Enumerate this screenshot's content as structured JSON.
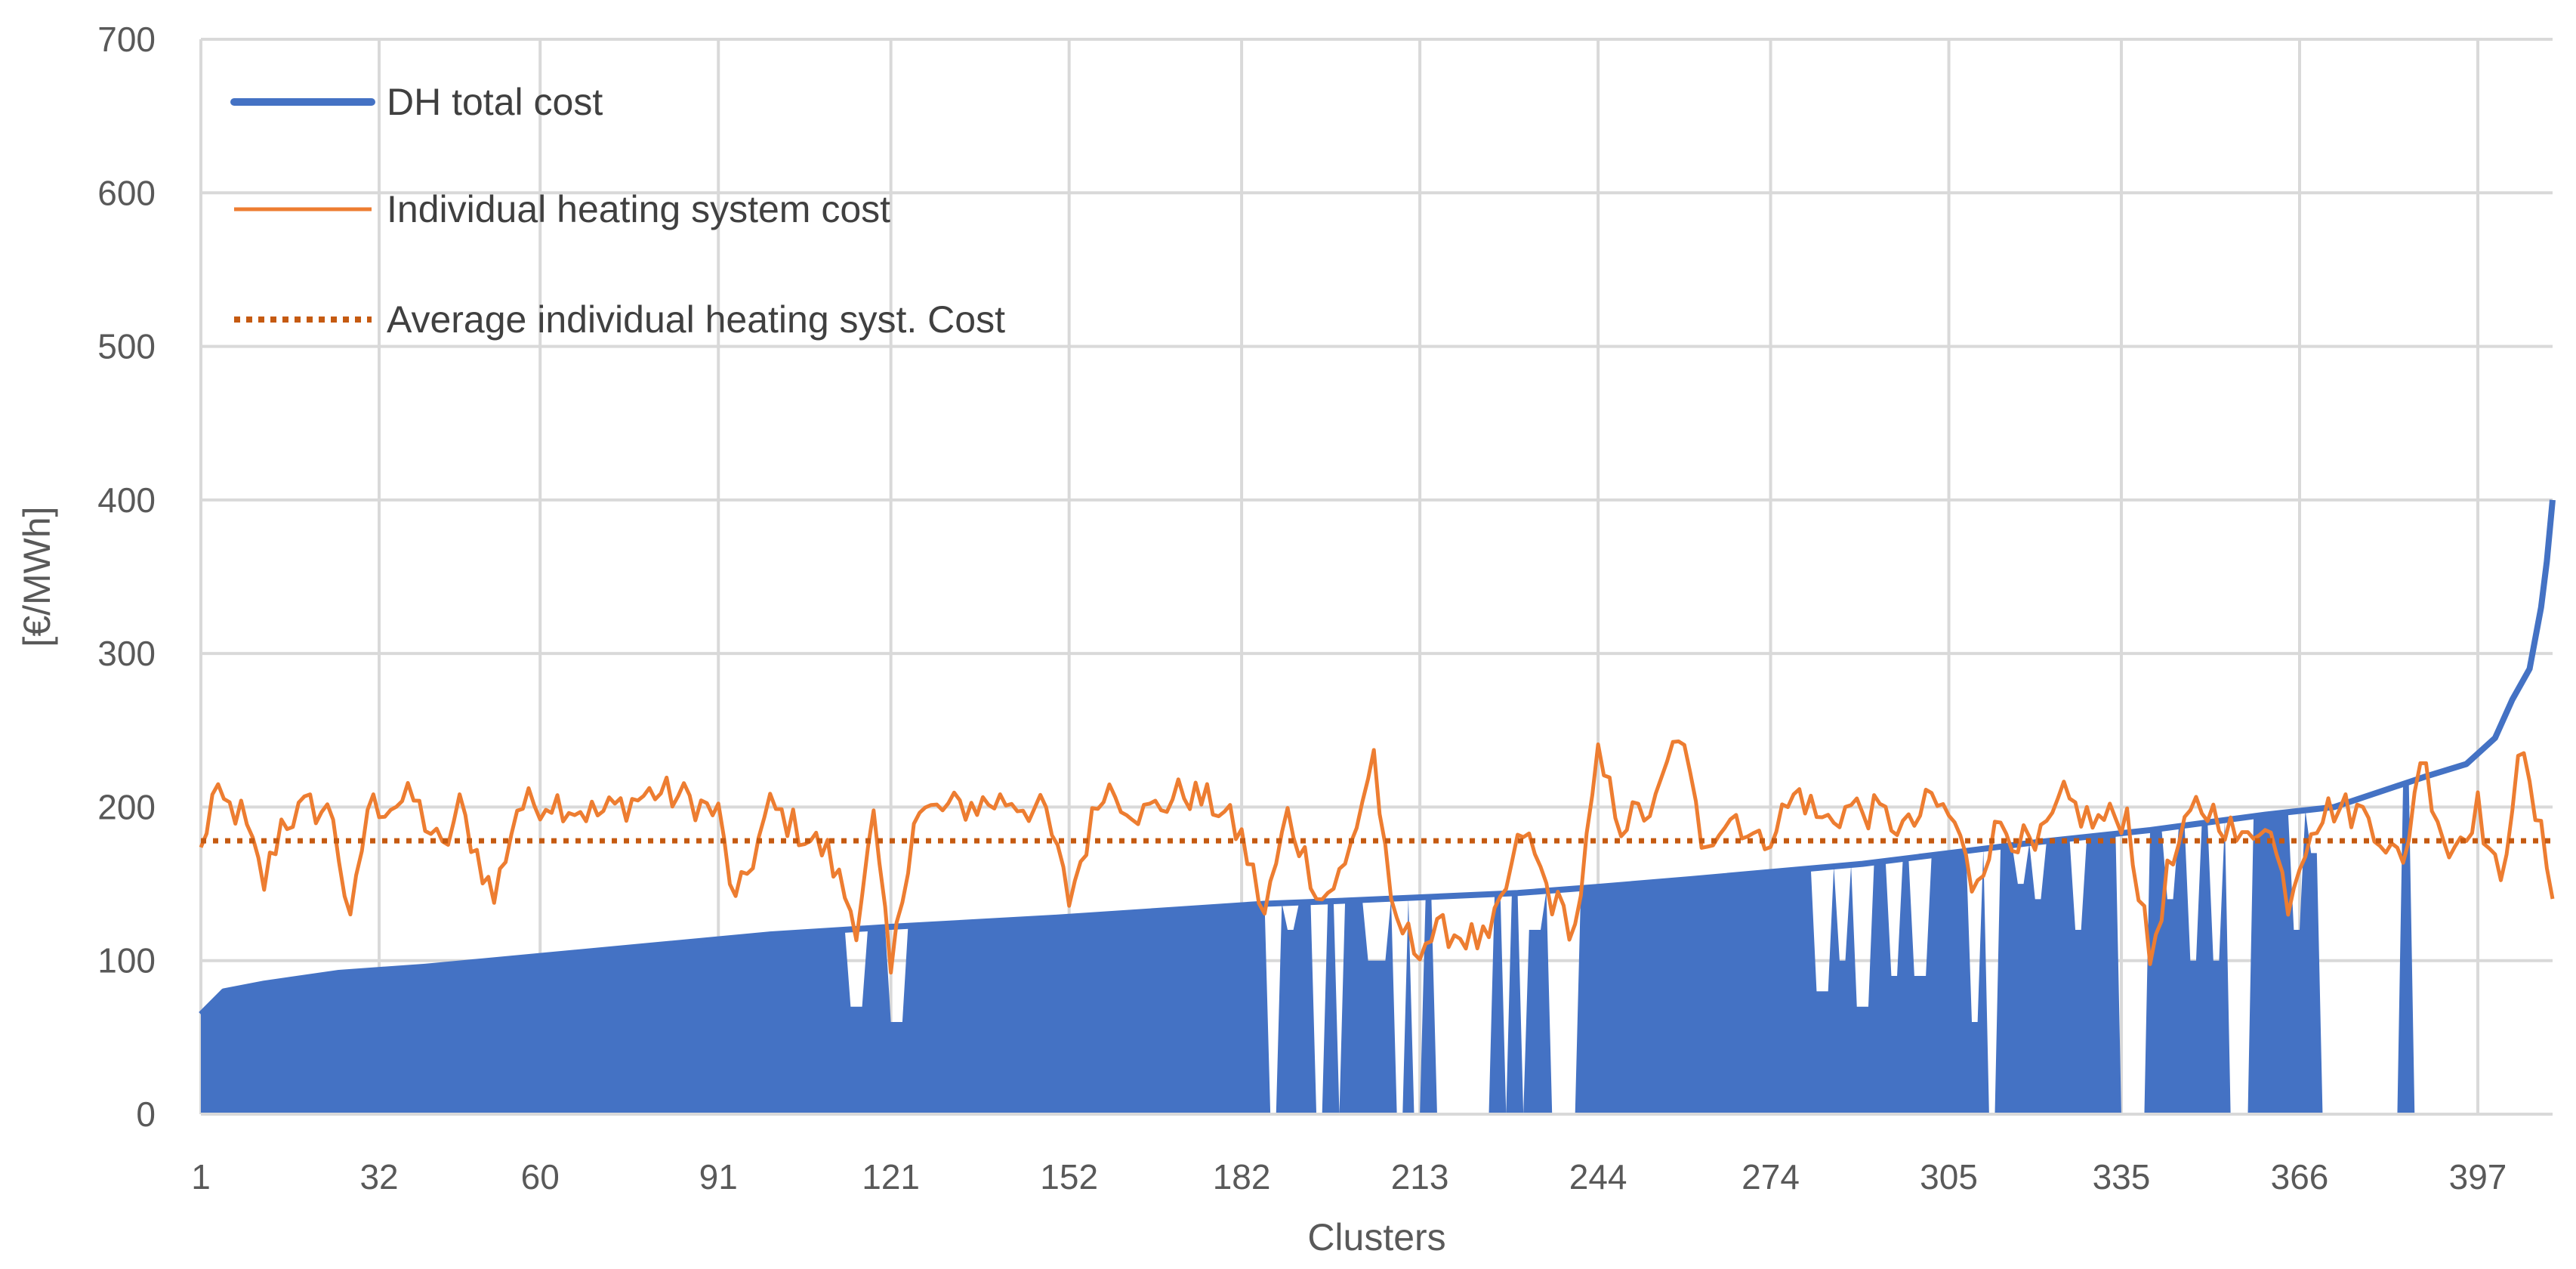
{
  "chart_data": {
    "type": "line",
    "title": "",
    "xlabel": "Clusters",
    "ylabel": "[€/MWh]",
    "xlim": [
      1,
      410
    ],
    "ylim": [
      0,
      700
    ],
    "grid": true,
    "legend_position": "top-left",
    "x_ticks": [
      1,
      32,
      60,
      91,
      121,
      152,
      182,
      213,
      244,
      274,
      305,
      335,
      366,
      397
    ],
    "x_tick_labels": [
      "1",
      "32",
      "60",
      "91",
      "121",
      "152",
      "182",
      "213",
      "244",
      "274",
      "305",
      "335",
      "366",
      "397"
    ],
    "y_ticks": [
      0,
      100,
      200,
      300,
      400,
      500,
      600,
      700
    ],
    "y_tick_labels": [
      "0",
      "100",
      "200",
      "300",
      "400",
      "500",
      "600",
      "700"
    ],
    "colors": {
      "dh": "#4472C4",
      "individual": "#ED7D31",
      "average": "#C55A11"
    },
    "series": [
      {
        "name": "DH total cost",
        "style": "area-solid",
        "dh_curve": [
          [
            1,
            65
          ],
          [
            5,
            80
          ],
          [
            12,
            85
          ],
          [
            25,
            92
          ],
          [
            40,
            96
          ],
          [
            60,
            103
          ],
          [
            80,
            110
          ],
          [
            100,
            117
          ],
          [
            121,
            122
          ],
          [
            150,
            128
          ],
          [
            170,
            133
          ],
          [
            186,
            137
          ],
          [
            200,
            139
          ],
          [
            230,
            144
          ],
          [
            244,
            148
          ],
          [
            260,
            153
          ],
          [
            290,
            163
          ],
          [
            305,
            170
          ],
          [
            320,
            177
          ],
          [
            340,
            185
          ],
          [
            360,
            195
          ],
          [
            372,
            200
          ],
          [
            388,
            220
          ],
          [
            395,
            228
          ],
          [
            400,
            245
          ],
          [
            403,
            270
          ],
          [
            406,
            290
          ],
          [
            408,
            330
          ],
          [
            409,
            360
          ],
          [
            410,
            400
          ]
        ],
        "zero_ranges": [
          [
            186.5,
            188.5
          ],
          [
            190.5,
            191.5
          ],
          [
            194.5,
            196.5
          ],
          [
            198.5,
            199.5
          ],
          [
            203.5,
            206.5
          ],
          [
            208.5,
            210.5
          ],
          [
            211.5,
            213.5
          ],
          [
            215.5,
            225.5
          ],
          [
            227.5,
            228.5
          ],
          [
            230.5,
            232.5
          ],
          [
            235.5,
            240.5
          ],
          [
            311.5,
            313.5
          ],
          [
            334.5,
            339.5
          ],
          [
            353.5,
            357.5
          ],
          [
            369.5,
            383.5
          ],
          [
            385.5,
            410
          ]
        ],
        "dip_ranges": [
          [
            114,
            116,
            70
          ],
          [
            121,
            123,
            60
          ],
          [
            190,
            191,
            120
          ],
          [
            204,
            207,
            100
          ],
          [
            232,
            234,
            120
          ],
          [
            282,
            284,
            80
          ],
          [
            286,
            287,
            100
          ],
          [
            289,
            291,
            70
          ],
          [
            295,
            296,
            90
          ],
          [
            299,
            301,
            90
          ],
          [
            309,
            310,
            60
          ],
          [
            317,
            318,
            150
          ],
          [
            320,
            321,
            140
          ],
          [
            327,
            328,
            120
          ],
          [
            343,
            344,
            140
          ],
          [
            347,
            348,
            100
          ],
          [
            351,
            352,
            100
          ],
          [
            365,
            366,
            120
          ],
          [
            368,
            369,
            170
          ]
        ]
      },
      {
        "name": "Individual heating system cost",
        "style": "line",
        "anchors": [
          [
            1,
            170
          ],
          [
            3,
            205
          ],
          [
            8,
            195
          ],
          [
            12,
            150
          ],
          [
            15,
            190
          ],
          [
            20,
            200
          ],
          [
            24,
            195
          ],
          [
            27,
            120
          ],
          [
            30,
            200
          ],
          [
            38,
            205
          ],
          [
            43,
            170
          ],
          [
            46,
            200
          ],
          [
            52,
            140
          ],
          [
            56,
            200
          ],
          [
            62,
            205
          ],
          [
            70,
            195
          ],
          [
            80,
            210
          ],
          [
            86,
            205
          ],
          [
            91,
            195
          ],
          [
            94,
            135
          ],
          [
            100,
            200
          ],
          [
            110,
            170
          ],
          [
            115,
            125
          ],
          [
            118,
            190
          ],
          [
            121,
            90
          ],
          [
            125,
            195
          ],
          [
            133,
            200
          ],
          [
            142,
            205
          ],
          [
            148,
            195
          ],
          [
            152,
            140
          ],
          [
            158,
            215
          ],
          [
            165,
            195
          ],
          [
            172,
            210
          ],
          [
            178,
            200
          ],
          [
            182,
            180
          ],
          [
            186,
            130
          ],
          [
            190,
            195
          ],
          [
            196,
            140
          ],
          [
            200,
            160
          ],
          [
            205,
            235
          ],
          [
            208,
            130
          ],
          [
            212,
            110
          ],
          [
            218,
            120
          ],
          [
            225,
            110
          ],
          [
            231,
            185
          ],
          [
            236,
            140
          ],
          [
            240,
            120
          ],
          [
            244,
            230
          ],
          [
            248,
            190
          ],
          [
            254,
            200
          ],
          [
            258,
            250
          ],
          [
            262,
            180
          ],
          [
            268,
            195
          ],
          [
            272,
            175
          ],
          [
            279,
            210
          ],
          [
            283,
            190
          ],
          [
            288,
            200
          ],
          [
            293,
            195
          ],
          [
            298,
            185
          ],
          [
            302,
            205
          ],
          [
            306,
            190
          ],
          [
            309,
            150
          ],
          [
            314,
            190
          ],
          [
            320,
            170
          ],
          [
            325,
            205
          ],
          [
            330,
            190
          ],
          [
            336,
            195
          ],
          [
            340,
            100
          ],
          [
            343,
            155
          ],
          [
            348,
            200
          ],
          [
            352,
            195
          ],
          [
            356,
            175
          ],
          [
            360,
            195
          ],
          [
            364,
            140
          ],
          [
            368,
            190
          ],
          [
            372,
            200
          ],
          [
            378,
            195
          ],
          [
            384,
            160
          ],
          [
            387,
            235
          ],
          [
            392,
            170
          ],
          [
            397,
            200
          ],
          [
            401,
            145
          ],
          [
            404,
            240
          ],
          [
            407,
            195
          ],
          [
            410,
            150
          ]
        ]
      },
      {
        "name": "Average individual heating syst. Cost",
        "style": "dotted",
        "value": 178
      }
    ]
  }
}
